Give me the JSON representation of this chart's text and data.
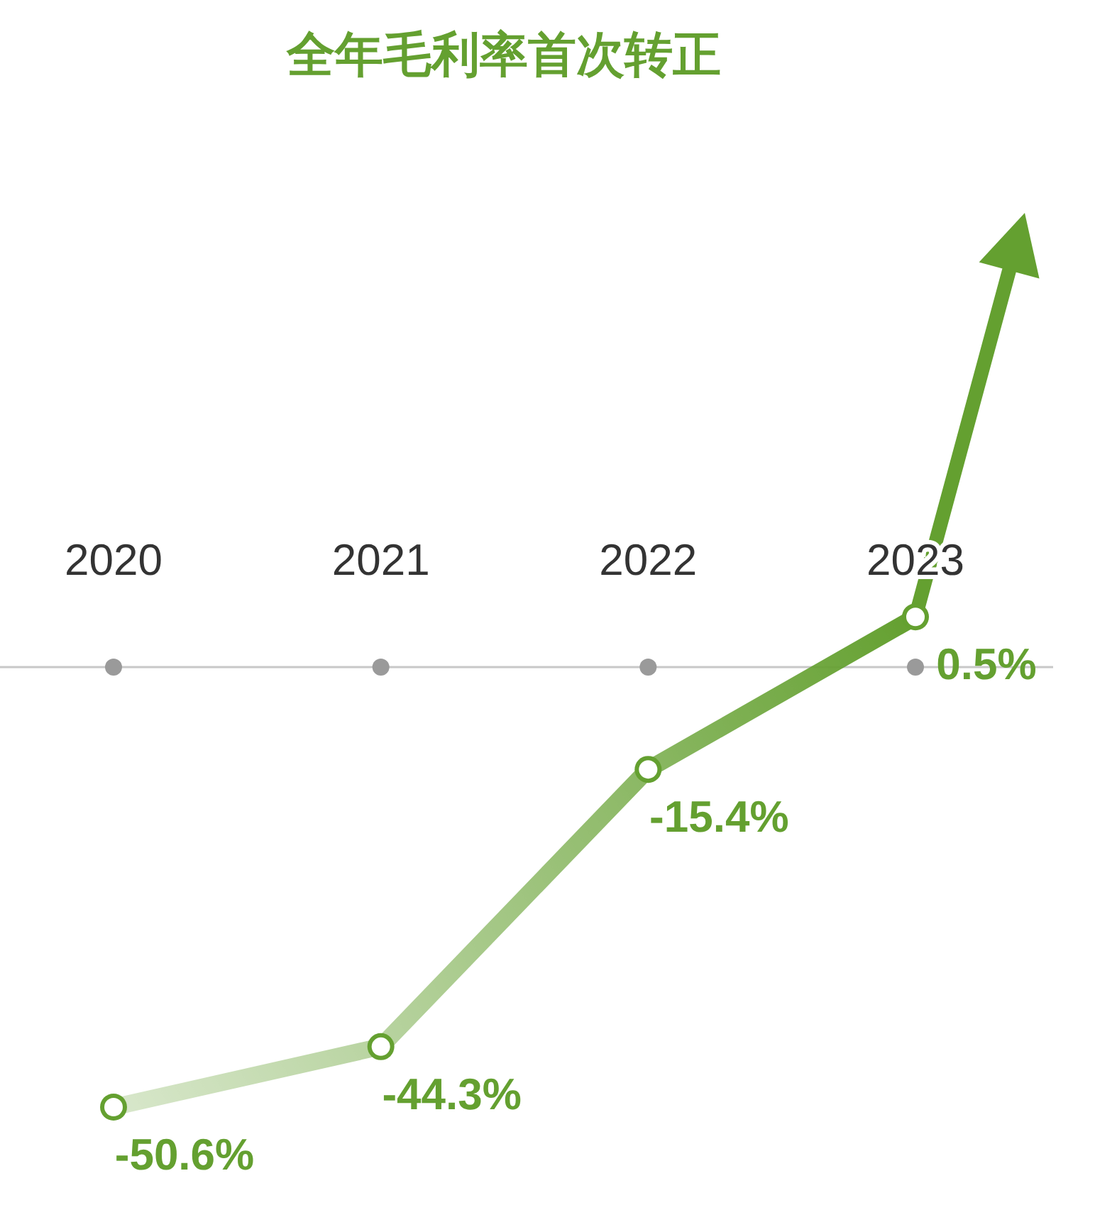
{
  "chart_data": {
    "type": "line",
    "title": "全年毛利率首次转正",
    "categories": [
      "2020",
      "2021",
      "2022",
      "2023"
    ],
    "values": [
      -50.6,
      -44.3,
      -15.4,
      0.5
    ],
    "value_labels": [
      "-50.6%",
      "-44.3%",
      "-15.4%",
      "0.5%"
    ],
    "color": "#64a030",
    "marker": "circle"
  }
}
